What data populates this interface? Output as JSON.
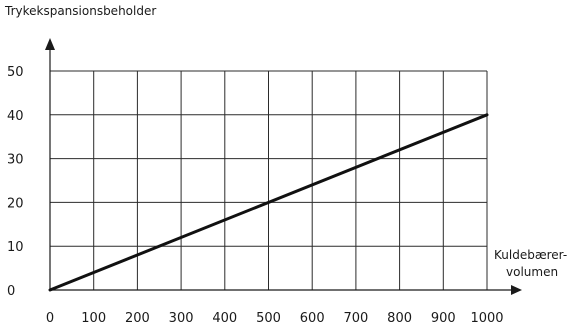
{
  "chart_data": {
    "type": "line",
    "ylabel": "Trykekspansionsbeholder",
    "xlabel_lines": [
      "Kuldebærer-",
      "volumen"
    ],
    "x_ticks": [
      0,
      100,
      200,
      300,
      400,
      500,
      600,
      700,
      800,
      900,
      1000
    ],
    "x_tick_labels": [
      "0",
      "100",
      "200",
      "300",
      "400",
      "500",
      "600",
      "700",
      "800",
      "900",
      "1000"
    ],
    "y_ticks": [
      0,
      10,
      20,
      30,
      40,
      50
    ],
    "y_tick_labels": [
      "0",
      "10",
      "20",
      "30",
      "40",
      "50"
    ],
    "xlim": [
      0,
      1000
    ],
    "ylim": [
      0,
      50
    ],
    "grid": true,
    "series": [
      {
        "x": [
          0,
          1000
        ],
        "y": [
          0,
          40
        ]
      }
    ]
  }
}
